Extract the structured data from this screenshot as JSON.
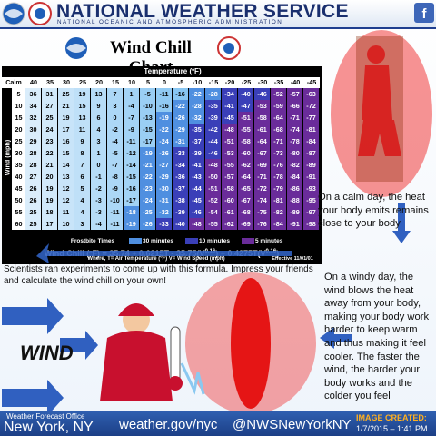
{
  "header": {
    "title": "NATIONAL WEATHER SERVICE",
    "subtitle": "NATIONAL OCEANIC AND ATMOSPHERIC ADMINISTRATION"
  },
  "chart_title": "Wind Chill Chart",
  "table": {
    "title": "Temperature (ºF)",
    "wind_label": "Wind (mph)",
    "corner": "Calm",
    "temperatures": [
      40,
      35,
      30,
      25,
      20,
      15,
      10,
      5,
      0,
      -5,
      -10,
      -15,
      -20,
      -25,
      -30,
      -35,
      -40,
      -45
    ],
    "rows": [
      {
        "wind": 5,
        "values": [
          36,
          31,
          25,
          19,
          13,
          7,
          1,
          -5,
          -11,
          -16,
          -22,
          -28,
          -34,
          -40,
          -46,
          -52,
          -57,
          -63
        ]
      },
      {
        "wind": 10,
        "values": [
          34,
          27,
          21,
          15,
          9,
          3,
          -4,
          -10,
          -16,
          -22,
          -28,
          -35,
          -41,
          -47,
          -53,
          -59,
          -66,
          -72
        ]
      },
      {
        "wind": 15,
        "values": [
          32,
          25,
          19,
          13,
          6,
          0,
          -7,
          -13,
          -19,
          -26,
          -32,
          -39,
          -45,
          -51,
          -58,
          -64,
          -71,
          -77
        ]
      },
      {
        "wind": 20,
        "values": [
          30,
          24,
          17,
          11,
          4,
          -2,
          -9,
          -15,
          -22,
          -29,
          -35,
          -42,
          -48,
          -55,
          -61,
          -68,
          -74,
          -81
        ]
      },
      {
        "wind": 25,
        "values": [
          29,
          23,
          16,
          9,
          3,
          -4,
          -11,
          -17,
          -24,
          -31,
          -37,
          -44,
          -51,
          -58,
          -64,
          -71,
          -78,
          -84
        ]
      },
      {
        "wind": 30,
        "values": [
          28,
          22,
          15,
          8,
          1,
          -5,
          -12,
          -19,
          -26,
          -33,
          -39,
          -46,
          -53,
          -60,
          -67,
          -73,
          -80,
          -87
        ]
      },
      {
        "wind": 35,
        "values": [
          28,
          21,
          14,
          7,
          0,
          -7,
          -14,
          -21,
          -27,
          -34,
          -41,
          -48,
          -55,
          -62,
          -69,
          -76,
          -82,
          -89
        ]
      },
      {
        "wind": 40,
        "values": [
          27,
          20,
          13,
          6,
          -1,
          -8,
          -15,
          -22,
          -29,
          -36,
          -43,
          -50,
          -57,
          -64,
          -71,
          -78,
          -84,
          -91
        ]
      },
      {
        "wind": 45,
        "values": [
          26,
          19,
          12,
          5,
          -2,
          -9,
          -16,
          -23,
          -30,
          -37,
          -44,
          -51,
          -58,
          -65,
          -72,
          -79,
          -86,
          -93
        ]
      },
      {
        "wind": 50,
        "values": [
          26,
          19,
          12,
          4,
          -3,
          -10,
          -17,
          -24,
          -31,
          -38,
          -45,
          -52,
          -60,
          -67,
          -74,
          -81,
          -88,
          -95
        ]
      },
      {
        "wind": 55,
        "values": [
          25,
          18,
          11,
          4,
          -3,
          -11,
          -18,
          -25,
          -32,
          -39,
          -46,
          -54,
          -61,
          -68,
          -75,
          -82,
          -89,
          -97
        ]
      },
      {
        "wind": 60,
        "values": [
          25,
          17,
          10,
          3,
          -4,
          -11,
          -19,
          -26,
          -33,
          -40,
          -48,
          -55,
          -62,
          -69,
          -76,
          -84,
          -91,
          -98
        ]
      }
    ]
  },
  "legend": {
    "title": "Frostbite Times",
    "items": [
      {
        "label": "30 minutes",
        "color": "#4f8fe0"
      },
      {
        "label": "10 minutes",
        "color": "#3a3fb8"
      },
      {
        "label": "5 minutes",
        "color": "#6a2c9a"
      }
    ]
  },
  "formula": {
    "parts": [
      "Wind Chill (ºF) = 35.74 + 0.6215T - 35.75(V",
      "0.16",
      ") + 0.4275T(V",
      "0.16",
      ")"
    ],
    "note": "Where, T= Air Temperature (ºF)   V= Wind Speed (mph)",
    "effective": "Effective 11/01/01"
  },
  "experiment_note": "Scientists ran experiments to come up with this formula.  Impress your friends and calculate the wind chill on your own!",
  "calm_note": "On a calm day, the heat your body emits remains close to your body",
  "windy_note": "On a windy day, the wind blows the heat away from your body, making your body work harder to keep warm and thus making it feel cooler.  The faster the wind, the harder your body works and the colder you feel",
  "wind_label": "WIND",
  "footer": {
    "office": "Weather Forecast Office",
    "city": "New York, NY",
    "website": "weather.gov/nyc",
    "twitter": "@NWSNewYorkNY",
    "created_label": "IMAGE CREATED:",
    "created": "1/7/2015 – 1:41 PM"
  }
}
